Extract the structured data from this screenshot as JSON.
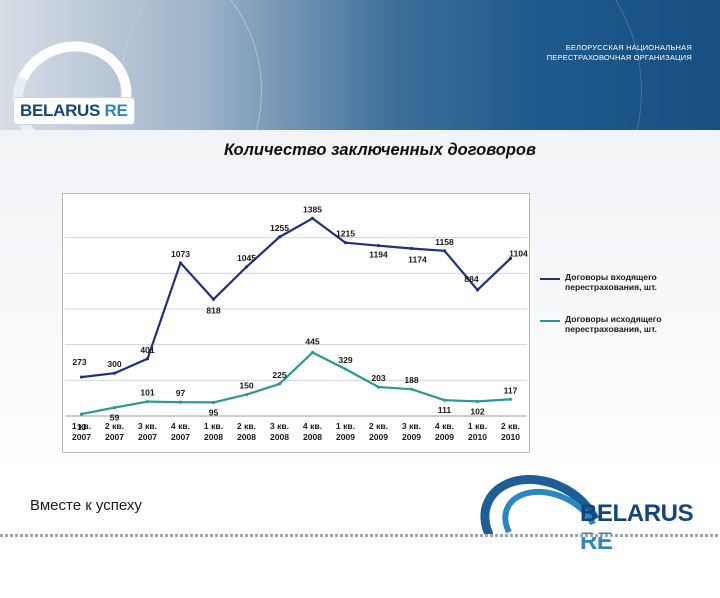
{
  "header": {
    "org_line_1": "БЕЛОРУССКАЯ НАЦИОНАЛЬНАЯ",
    "org_line_2": "ПЕРЕСТРАХОВОЧНАЯ ОРГАНИЗАЦИЯ",
    "logo_word": "BELARUS",
    "logo_re": "RE"
  },
  "footer": {
    "slogan": "Вместе к успеху",
    "logo_word": "BELARUS",
    "logo_re": "RE"
  },
  "colors": {
    "incoming": "#232f7a",
    "outgoing": "#2a9a90"
  },
  "chart_data": {
    "type": "line",
    "title": "Количество заключенных договоров",
    "categories": [
      [
        "1 кв.",
        "2007"
      ],
      [
        "2 кв.",
        "2007"
      ],
      [
        "3 кв.",
        "2007"
      ],
      [
        "4 кв.",
        "2007"
      ],
      [
        "1 кв.",
        "2008"
      ],
      [
        "2 кв.",
        "2008"
      ],
      [
        "3 кв.",
        "2008"
      ],
      [
        "4 кв.",
        "2008"
      ],
      [
        "1 кв.",
        "2009"
      ],
      [
        "2 кв.",
        "2009"
      ],
      [
        "3 кв.",
        "2009"
      ],
      [
        "4 кв.",
        "2009"
      ],
      [
        "1 кв.",
        "2010"
      ],
      [
        "2 кв.",
        "2010"
      ]
    ],
    "series": [
      {
        "name": "Договоры входящего перестрахования, шт.",
        "values": [
          273,
          300,
          401,
          1073,
          818,
          1045,
          1255,
          1385,
          1215,
          1194,
          1174,
          1158,
          884,
          1104
        ]
      },
      {
        "name": "Договоры исходящего перестрахования, шт.",
        "values": [
          13,
          59,
          101,
          97,
          95,
          150,
          225,
          445,
          329,
          203,
          188,
          111,
          102,
          117
        ]
      }
    ],
    "ylim": [
      0,
      1500
    ],
    "grid": true,
    "legend": "right"
  }
}
